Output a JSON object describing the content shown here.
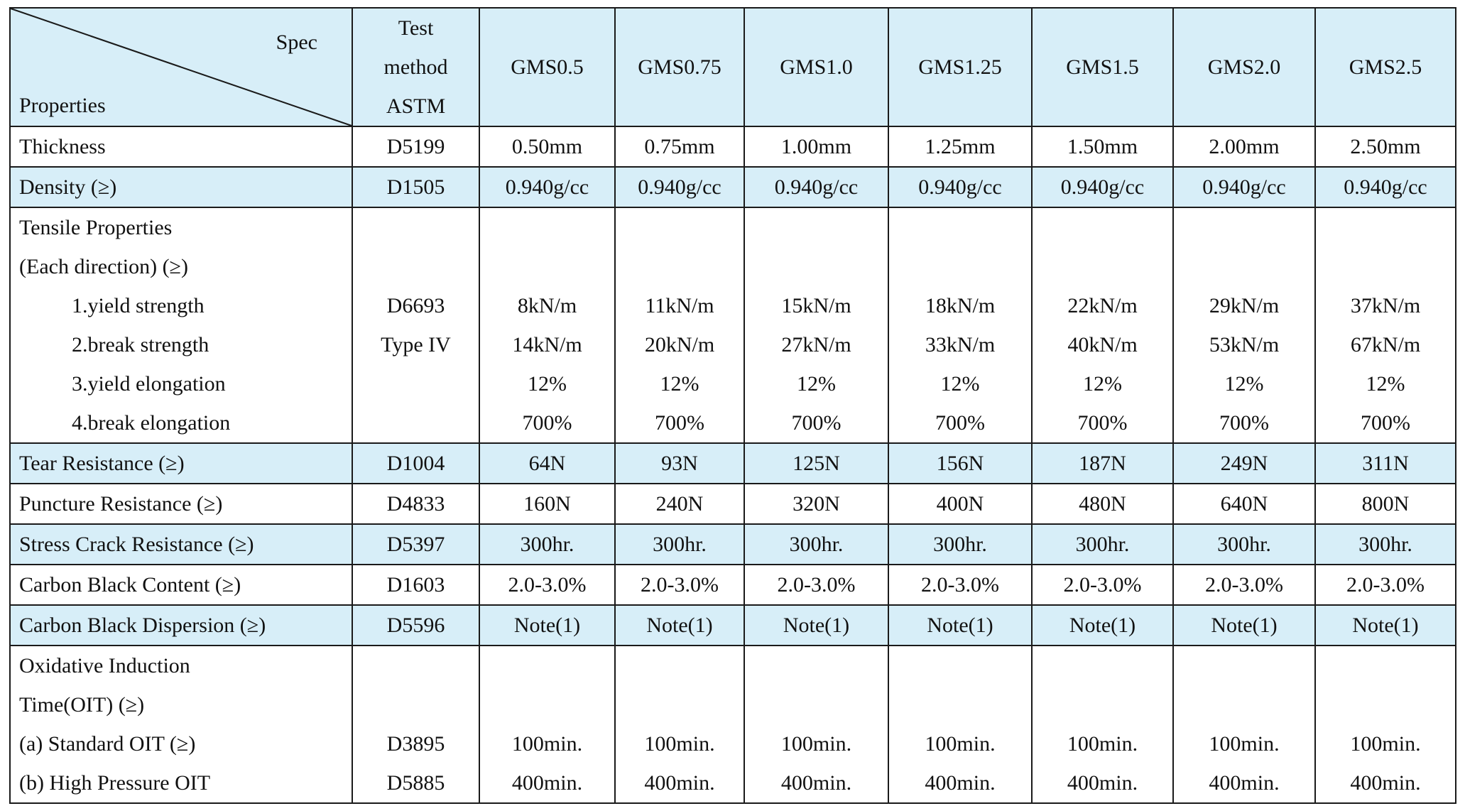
{
  "header": {
    "spec": "Spec",
    "properties": "Properties",
    "test_method": [
      "Test",
      "method",
      "ASTM"
    ],
    "grades": [
      "GMS0.5",
      "GMS0.75",
      "GMS1.0",
      "GMS1.25",
      "GMS1.5",
      "GMS2.0",
      "GMS2.5"
    ]
  },
  "rows": {
    "thickness": {
      "label": "Thickness",
      "method": "D5199",
      "values": [
        "0.50mm",
        "0.75mm",
        "1.00mm",
        "1.25mm",
        "1.50mm",
        "2.00mm",
        "2.50mm"
      ]
    },
    "density": {
      "label": "Density (≥)",
      "method": "D1505",
      "values": [
        "0.940g/cc",
        "0.940g/cc",
        "0.940g/cc",
        "0.940g/cc",
        "0.940g/cc",
        "0.940g/cc",
        "0.940g/cc"
      ]
    },
    "tensile": {
      "label_lines": [
        "Tensile Properties",
        "(Each direction) (≥)"
      ],
      "sub_labels": [
        "1.yield strength",
        "2.break strength",
        "3.yield elongation",
        "4.break elongation"
      ],
      "method_lines": [
        "D6693",
        "Type IV"
      ],
      "values": [
        [
          "8kN/m",
          "14kN/m",
          "12%",
          "700%"
        ],
        [
          "11kN/m",
          "20kN/m",
          "12%",
          "700%"
        ],
        [
          "15kN/m",
          "27kN/m",
          "12%",
          "700%"
        ],
        [
          "18kN/m",
          "33kN/m",
          "12%",
          "700%"
        ],
        [
          "22kN/m",
          "40kN/m",
          "12%",
          "700%"
        ],
        [
          "29kN/m",
          "53kN/m",
          "12%",
          "700%"
        ],
        [
          "37kN/m",
          "67kN/m",
          "12%",
          "700%"
        ]
      ]
    },
    "tear": {
      "label": "Tear Resistance (≥)",
      "method": "D1004",
      "values": [
        "64N",
        "93N",
        "125N",
        "156N",
        "187N",
        "249N",
        "311N"
      ]
    },
    "puncture": {
      "label": "Puncture Resistance (≥)",
      "method": "D4833",
      "values": [
        "160N",
        "240N",
        "320N",
        "400N",
        "480N",
        "640N",
        "800N"
      ]
    },
    "stress_crack": {
      "label": "Stress Crack Resistance (≥)",
      "method": "D5397",
      "values": [
        "300hr.",
        "300hr.",
        "300hr.",
        "300hr.",
        "300hr.",
        "300hr.",
        "300hr."
      ]
    },
    "cb_content": {
      "label": "Carbon Black Content (≥)",
      "method": "D1603",
      "values": [
        "2.0-3.0%",
        "2.0-3.0%",
        "2.0-3.0%",
        "2.0-3.0%",
        "2.0-3.0%",
        "2.0-3.0%",
        "2.0-3.0%"
      ]
    },
    "cb_dispersion": {
      "label": "Carbon Black Dispersion (≥)",
      "method": "D5596",
      "values": [
        "Note(1)",
        "Note(1)",
        "Note(1)",
        "Note(1)",
        "Note(1)",
        "Note(1)",
        "Note(1)"
      ]
    },
    "oit": {
      "label_lines": [
        "Oxidative Induction",
        "Time(OIT) (≥)",
        "(a) Standard OIT (≥)",
        "(b) High Pressure OIT"
      ],
      "method_lines": [
        "D3895",
        "D5885"
      ],
      "values": [
        [
          "100min.",
          "400min."
        ],
        [
          "100min.",
          "400min."
        ],
        [
          "100min.",
          "400min."
        ],
        [
          "100min.",
          "400min."
        ],
        [
          "100min.",
          "400min."
        ],
        [
          "100min.",
          "400min."
        ],
        [
          "100min.",
          "400min."
        ]
      ]
    }
  },
  "colors": {
    "header_bg": "#d7eef8",
    "border": "#1a1a1a"
  }
}
